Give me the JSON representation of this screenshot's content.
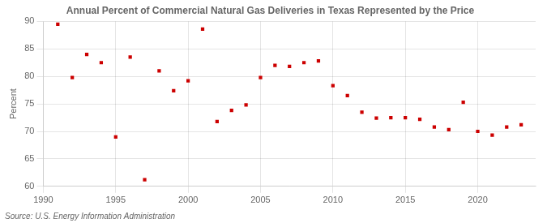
{
  "chart_data": {
    "type": "scatter",
    "title": "Annual Percent of Commercial Natural Gas Deliveries in Texas Represented by the Price",
    "ylabel": "Percent",
    "source": "Source: U.S. Energy Information Administration",
    "x": [
      1991,
      1992,
      1993,
      1994,
      1995,
      1996,
      1997,
      1998,
      1999,
      2000,
      2001,
      2002,
      2003,
      2004,
      2005,
      2006,
      2007,
      2008,
      2009,
      2010,
      2011,
      2012,
      2013,
      2014,
      2015,
      2016,
      2017,
      2018,
      2019,
      2020,
      2021,
      2022,
      2023
    ],
    "values": [
      89.5,
      79.8,
      84.0,
      82.5,
      69.0,
      83.5,
      61.2,
      81.0,
      77.4,
      79.2,
      88.6,
      71.8,
      73.8,
      74.8,
      79.8,
      82.0,
      81.8,
      82.5,
      82.8,
      78.3,
      76.5,
      73.5,
      72.4,
      72.5,
      72.5,
      72.2,
      70.8,
      70.3,
      75.3,
      70.0,
      69.3,
      70.8,
      71.2
    ],
    "color": "#cc0000",
    "marker": "square",
    "xlim": [
      1990,
      2024
    ],
    "ylim": [
      60,
      90
    ],
    "xticks": [
      1990,
      1995,
      2000,
      2005,
      2010,
      2015,
      2020
    ],
    "yticks": [
      60,
      65,
      70,
      75,
      80,
      85,
      90
    ],
    "grid": true
  }
}
